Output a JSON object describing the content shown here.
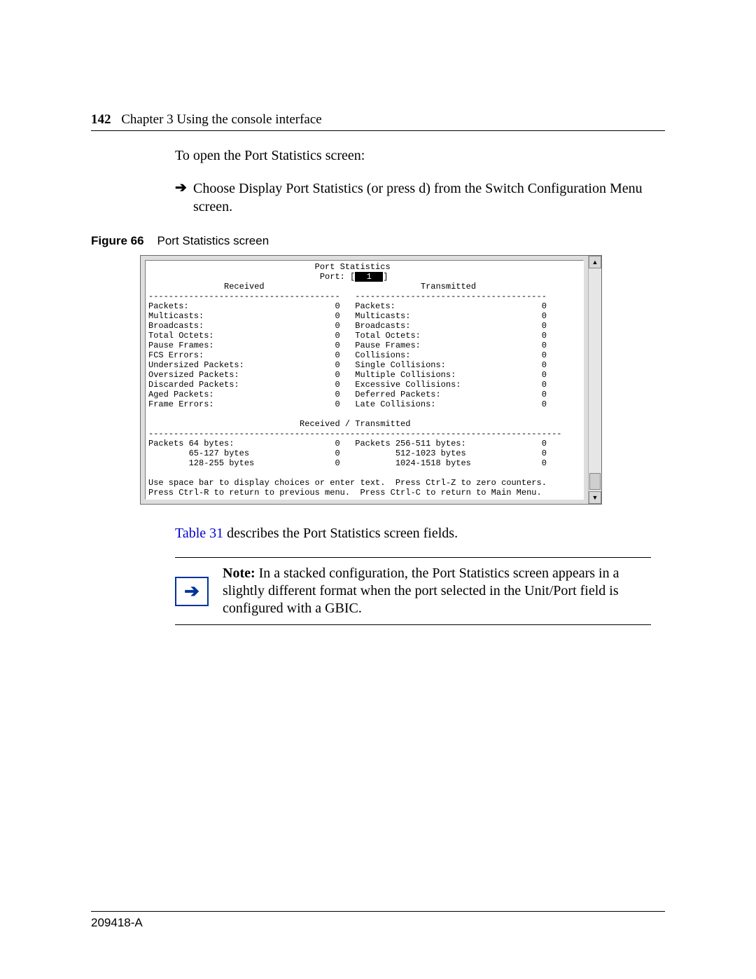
{
  "header": {
    "page_number": "142",
    "chapter_title": "Chapter 3  Using the console interface"
  },
  "intro": "To open the Port Statistics screen:",
  "bullet_arrow_glyph": "➔",
  "bullet_text": "Choose Display Port Statistics (or press d) from the Switch Configuration Menu screen.",
  "figure": {
    "label": "Figure 66",
    "title": "Port Statistics screen"
  },
  "terminal": {
    "title": "Port Statistics",
    "port_label": "Port:",
    "port_value": "1",
    "received_heading": "Received",
    "transmitted_heading": "Transmitted",
    "received": [
      {
        "label": "Packets:",
        "value": "0"
      },
      {
        "label": "Multicasts:",
        "value": "0"
      },
      {
        "label": "Broadcasts:",
        "value": "0"
      },
      {
        "label": "Total Octets:",
        "value": "0"
      },
      {
        "label": "Pause Frames:",
        "value": "0"
      },
      {
        "label": "FCS Errors:",
        "value": "0"
      },
      {
        "label": "Undersized Packets:",
        "value": "0"
      },
      {
        "label": "Oversized Packets:",
        "value": "0"
      },
      {
        "label": "Discarded Packets:",
        "value": "0"
      },
      {
        "label": "Aged Packets:",
        "value": "0"
      },
      {
        "label": "Frame Errors:",
        "value": "0"
      }
    ],
    "transmitted": [
      {
        "label": "Packets:",
        "value": "0"
      },
      {
        "label": "Multicasts:",
        "value": "0"
      },
      {
        "label": "Broadcasts:",
        "value": "0"
      },
      {
        "label": "Total Octets:",
        "value": "0"
      },
      {
        "label": "Pause Frames:",
        "value": "0"
      },
      {
        "label": "Collisions:",
        "value": "0"
      },
      {
        "label": "Single Collisions:",
        "value": "0"
      },
      {
        "label": "Multiple Collisions:",
        "value": "0"
      },
      {
        "label": "Excessive Collisions:",
        "value": "0"
      },
      {
        "label": "Deferred Packets:",
        "value": "0"
      },
      {
        "label": "Late Collisions:",
        "value": "0"
      }
    ],
    "rx_tx_heading": "Received / Transmitted",
    "sizes_left": [
      {
        "label": "Packets 64 bytes:",
        "value": "0"
      },
      {
        "label": "65-127 bytes",
        "value": "0"
      },
      {
        "label": "128-255 bytes",
        "value": "0"
      }
    ],
    "sizes_right": [
      {
        "label": "Packets 256-511 bytes:",
        "value": "0"
      },
      {
        "label": "512-1023 bytes",
        "value": "0"
      },
      {
        "label": "1024-1518 bytes",
        "value": "0"
      }
    ],
    "help1": "Use space bar to display choices or enter text.  Press Ctrl-Z to zero counters.",
    "help2": "Press Ctrl-R to return to previous menu.  Press Ctrl-C to return to Main Menu.",
    "scrollbar_up": "▲",
    "scrollbar_down": "▼"
  },
  "after_figure": {
    "link_text": "Table 31",
    "rest": " describes the Port Statistics screen fields."
  },
  "note": {
    "arrow_glyph": "➔",
    "label": "Note:",
    "text": " In a stacked configuration, the Port Statistics screen appears in a slightly different format when the port selected in the Unit/Port field is configured with a GBIC."
  },
  "footer": {
    "doc_number": "209418-A"
  },
  "colors": {
    "link": "#0000cc",
    "note_border": "#003399",
    "terminal_bg": "#dedede",
    "scrollbar_bg": "#e6e6e6"
  }
}
